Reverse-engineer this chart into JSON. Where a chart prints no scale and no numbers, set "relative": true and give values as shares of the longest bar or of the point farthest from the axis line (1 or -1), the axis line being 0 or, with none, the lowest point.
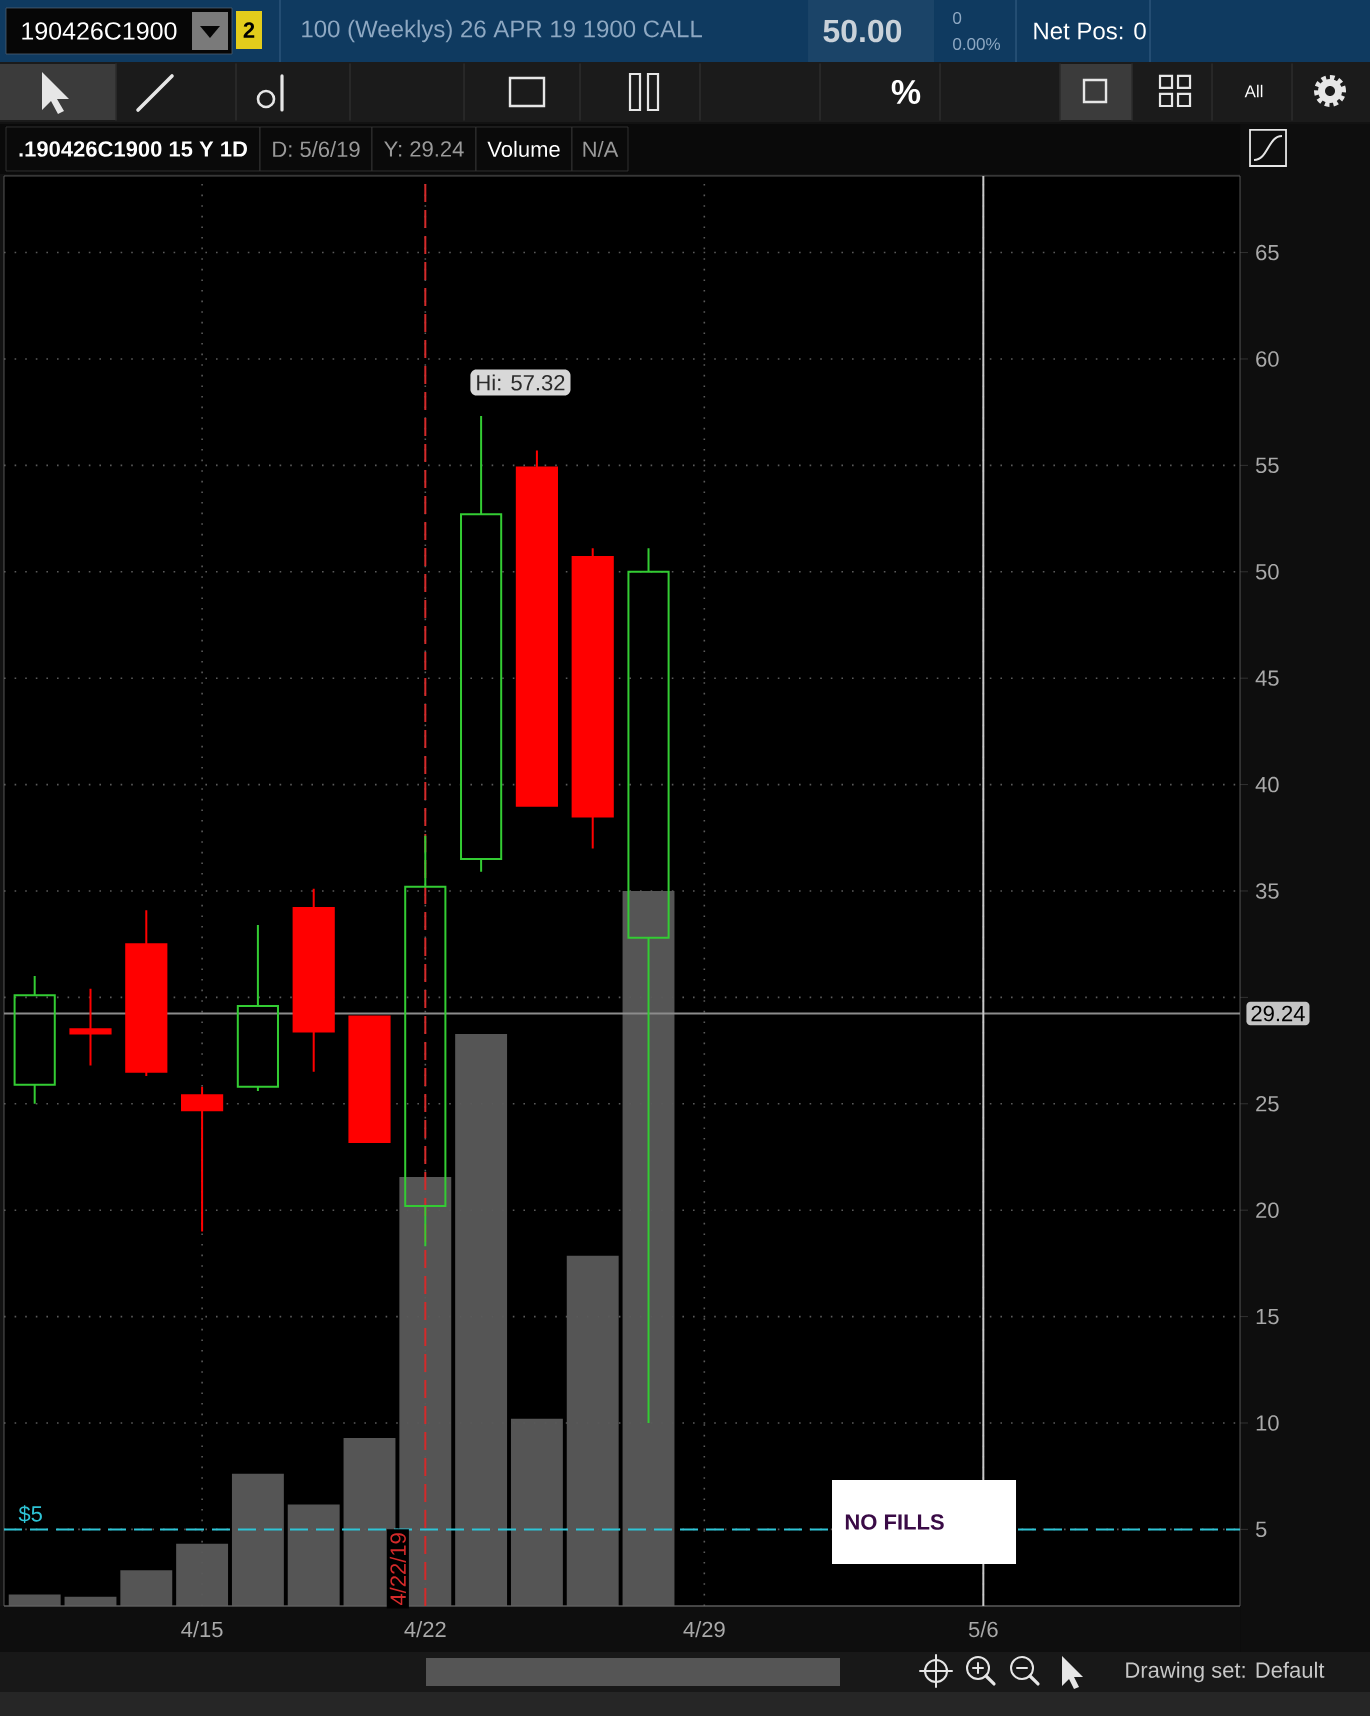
{
  "chart_data": [
    {
      "type": "candlestick",
      "title": ".190426C1900 15 Y 1D",
      "categories": [
        null,
        null,
        null,
        "4/15",
        null,
        null,
        null,
        "4/22",
        null,
        null,
        null,
        null,
        "4/29",
        null,
        null,
        null,
        null,
        "5/6",
        null,
        null,
        null,
        null
      ],
      "ohlc": [
        [
          25.9,
          31.0,
          25.0,
          30.1
        ],
        [
          28.5,
          30.4,
          26.8,
          28.3
        ],
        [
          32.5,
          34.1,
          26.3,
          26.5
        ],
        [
          25.4,
          25.8,
          19.0,
          24.7
        ],
        [
          25.8,
          33.4,
          25.6,
          29.6
        ],
        [
          34.2,
          35.1,
          26.5,
          28.4
        ],
        [
          29.1,
          29.1,
          23.2,
          23.2
        ],
        [
          20.2,
          37.6,
          18.3,
          35.2
        ],
        [
          36.5,
          57.32,
          35.9,
          52.7
        ],
        [
          54.9,
          55.7,
          39.0,
          39.0
        ],
        [
          50.7,
          51.1,
          37.0,
          38.5
        ],
        [
          32.8,
          51.1,
          10.0,
          50.0
        ],
        null,
        null,
        null,
        null,
        null,
        null,
        null,
        null,
        null,
        null
      ],
      "colors": [
        "#33cc33",
        "#ff0000",
        "#ff0000",
        "#ff0000",
        "#33cc33",
        "#ff0000",
        "#ff0000",
        "#33cc33",
        "#33cc33",
        "#ff0000",
        "#ff0000",
        "#33cc33",
        null,
        null,
        null,
        null,
        null,
        null,
        null,
        null,
        null,
        null
      ],
      "ylim": [
        1.4,
        68.6
      ],
      "yticks": [
        5,
        10,
        15,
        20,
        25,
        {
          "value": 30,
          "label": null
        },
        35,
        40,
        45,
        50,
        55,
        60,
        65
      ],
      "grid": true,
      "ref_lines": [
        {
          "axis": "y",
          "value": 5,
          "label": "$5",
          "color": "#2ec4d6",
          "line_style": "dashed"
        },
        {
          "axis": "y",
          "value": 29.24,
          "label": "29.24",
          "color": "#8c8c8c"
        },
        {
          "axis": "x",
          "value": "4/22",
          "label": "4/22/19",
          "color": "#d42a2a",
          "line_style": "dashed"
        },
        {
          "axis": "x",
          "value": "5/6",
          "color": "#c8c8c8"
        }
      ],
      "annotations": [
        "Hi: 57.32",
        "NO FILLS",
        "D: 5/6/19",
        "Y: 29.24",
        "190426C1900",
        "2",
        "100 (Weeklys) 26 APR 19 1900 CALL",
        "50.00",
        "0",
        "0.00%",
        "Net Pos: 0",
        "%",
        "All",
        "Drawing set: Default"
      ]
    },
    {
      "type": "bar",
      "title": "Volume",
      "relative": true,
      "categories": [
        null,
        null,
        null,
        null,
        null,
        null,
        null,
        null,
        null,
        null,
        null,
        null,
        null,
        null,
        null,
        null,
        null,
        null,
        null,
        null,
        null,
        null
      ],
      "values": [
        0.016,
        0.013,
        0.05,
        0.087,
        0.185,
        0.142,
        0.235,
        0.6,
        0.8,
        0.262,
        0.49,
        1,
        null,
        null,
        null,
        null,
        null,
        null,
        null,
        null,
        null,
        null
      ],
      "color": "#555555",
      "annotations": [
        "N/A"
      ]
    }
  ]
}
